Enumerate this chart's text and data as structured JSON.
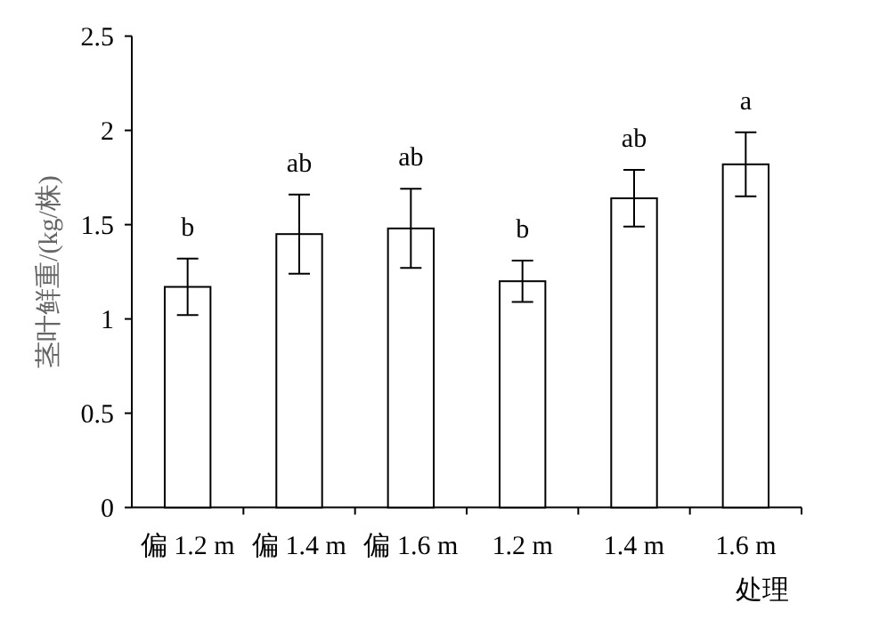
{
  "chart_data": {
    "type": "bar",
    "xlabel": "处理",
    "ylabel": "茎叶鲜重/(kg/株)",
    "categories": [
      "偏 1.2 m",
      "偏 1.4 m",
      "偏 1.6 m",
      "1.2 m",
      "1.4 m",
      "1.6 m"
    ],
    "values": [
      1.17,
      1.45,
      1.48,
      1.2,
      1.64,
      1.82
    ],
    "errors": [
      0.15,
      0.21,
      0.21,
      0.11,
      0.15,
      0.17
    ],
    "color": "#ffffff",
    "ylim": [
      0,
      2.5
    ],
    "yticks": [
      0,
      0.5,
      1,
      1.5,
      2,
      2.5
    ],
    "annotations": [
      {
        "text": "b",
        "x": "偏 1.2 m",
        "y": 1.32
      },
      {
        "text": "ab",
        "x": "偏 1.4 m",
        "y": 1.66
      },
      {
        "text": "ab",
        "x": "偏 1.6 m",
        "y": 1.69
      },
      {
        "text": "b",
        "x": "1.2 m",
        "y": 1.31
      },
      {
        "text": "ab",
        "x": "1.4 m",
        "y": 1.79
      },
      {
        "text": "a",
        "x": "1.6 m",
        "y": 1.99
      }
    ]
  }
}
